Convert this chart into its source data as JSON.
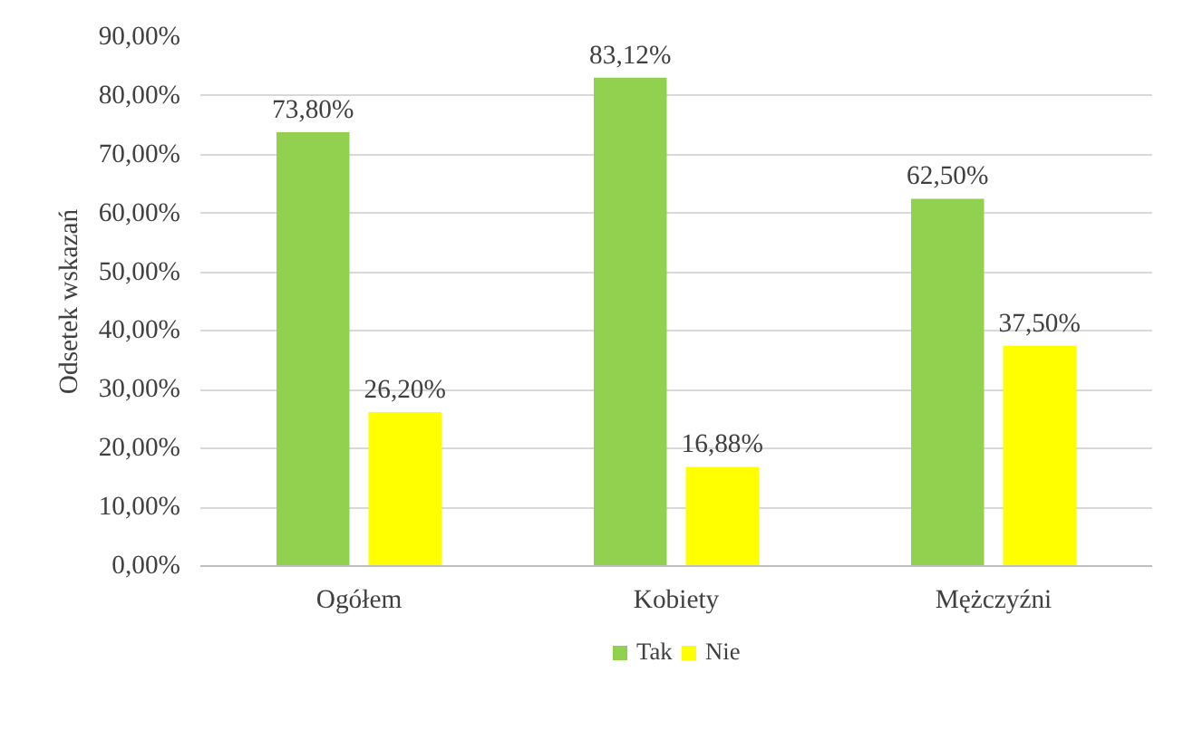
{
  "chart_data": {
    "type": "bar",
    "ylabel": "Odsetek wskazań",
    "categories": [
      "Ogółem",
      "Kobiety",
      "Mężczyźni"
    ],
    "series": [
      {
        "name": "Tak",
        "color": "#92d050",
        "values": [
          73.8,
          83.12,
          62.5
        ],
        "value_labels": [
          "73,80%",
          "83,12%",
          "62,50%"
        ]
      },
      {
        "name": "Nie",
        "color": "#ffff00",
        "values": [
          26.2,
          16.88,
          37.5
        ],
        "value_labels": [
          "26,20%",
          "16,88%",
          "37,50%"
        ]
      }
    ],
    "ylim": [
      0,
      90
    ],
    "yticks": [
      {
        "value": 0,
        "label": "0,00%"
      },
      {
        "value": 10,
        "label": "10,00%"
      },
      {
        "value": 20,
        "label": "20,00%"
      },
      {
        "value": 30,
        "label": "30,00%"
      },
      {
        "value": 40,
        "label": "40,00%"
      },
      {
        "value": 50,
        "label": "50,00%"
      },
      {
        "value": 60,
        "label": "60,00%"
      },
      {
        "value": 70,
        "label": "70,00%"
      },
      {
        "value": 80,
        "label": "80,00%"
      },
      {
        "value": 90,
        "label": "90,00%"
      }
    ],
    "grid": "y",
    "legend": "bottom"
  }
}
